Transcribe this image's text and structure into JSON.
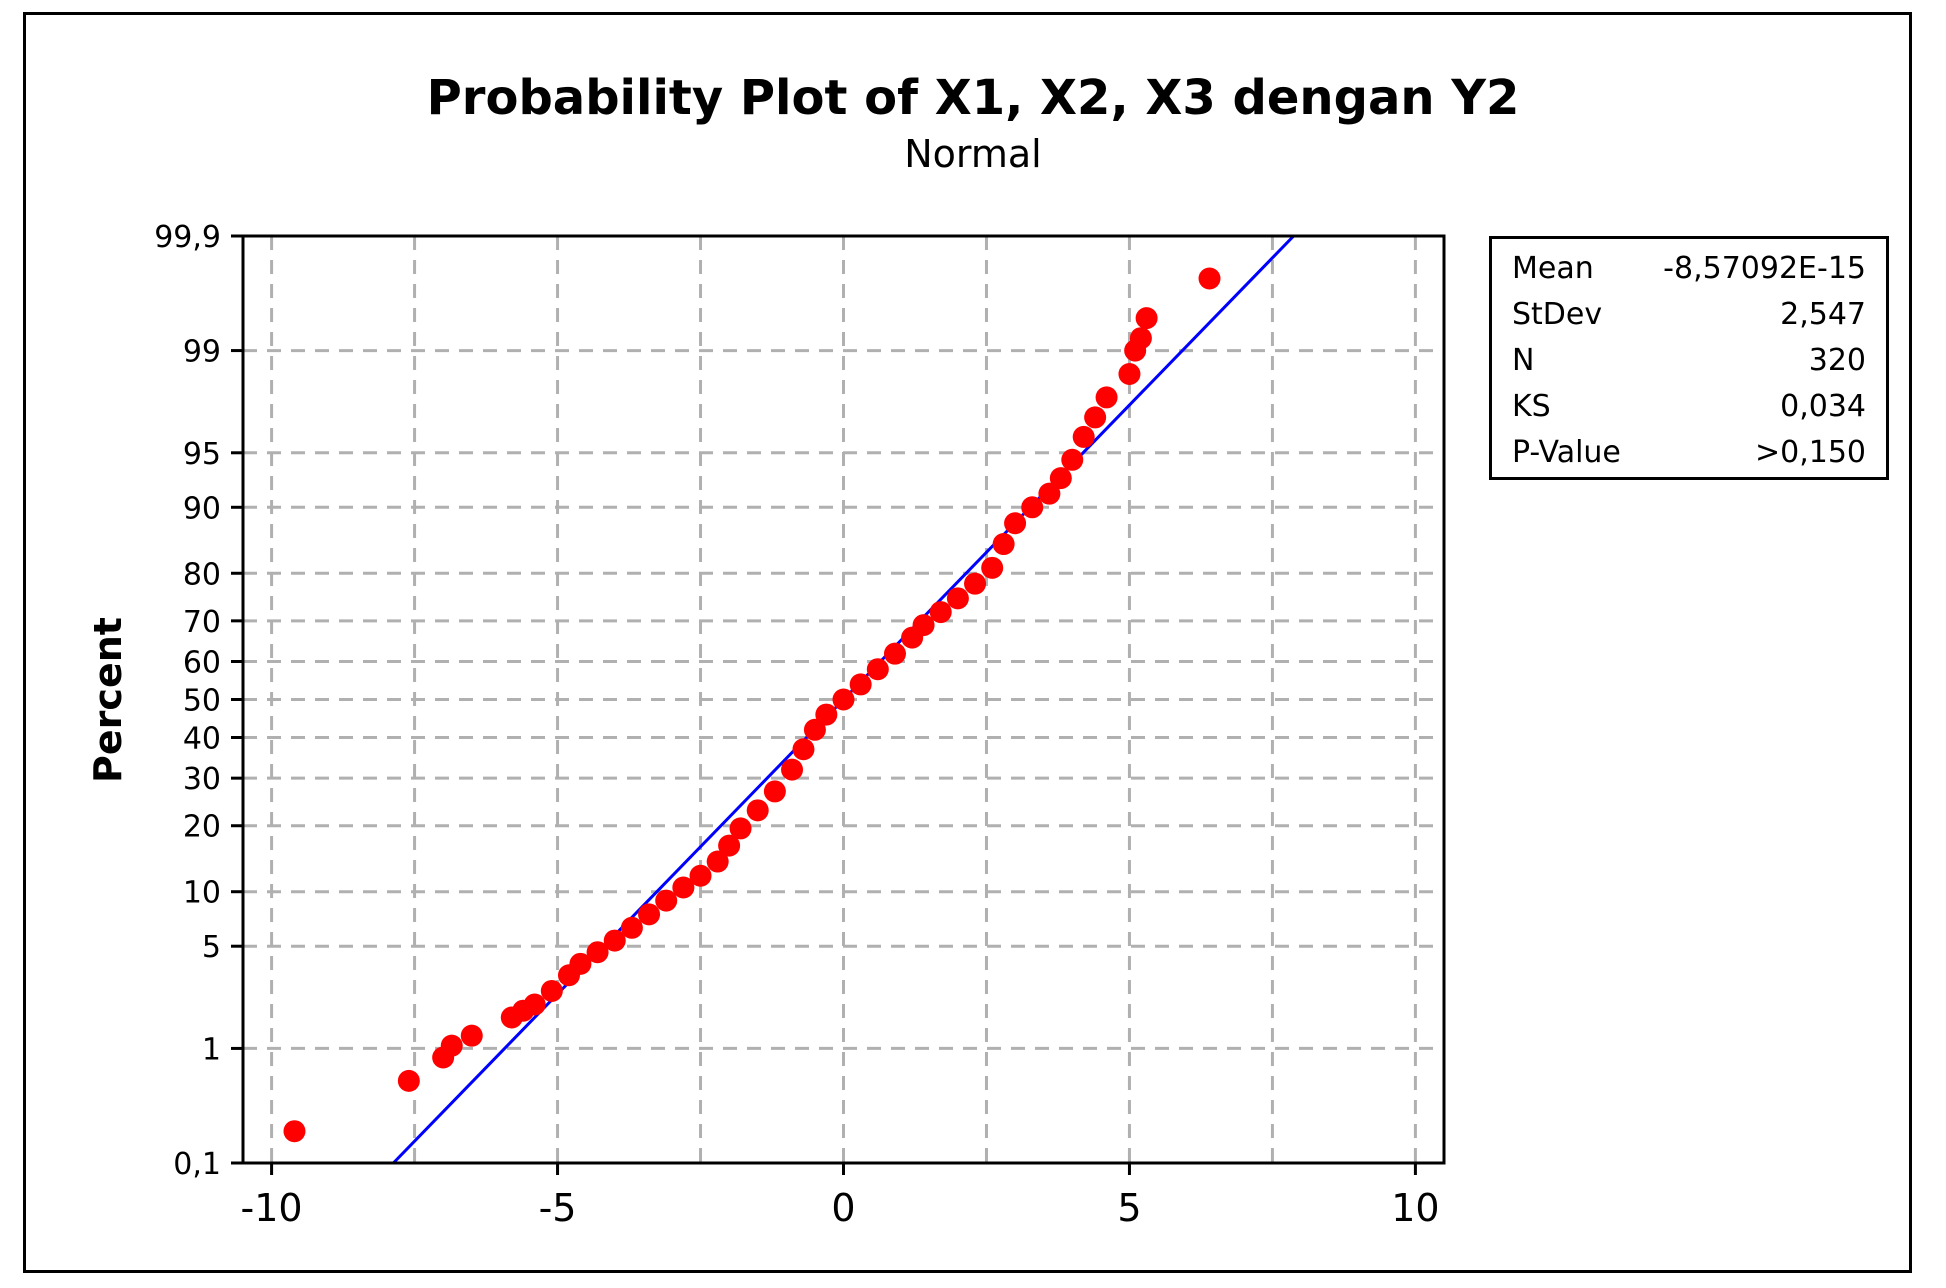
{
  "chart_data": {
    "type": "scatter",
    "title": "Probability Plot of X1, X2, X3 dengan Y2",
    "subtitle": "Normal",
    "xlabel": "",
    "ylabel": "Percent",
    "xlim": [
      -10.5,
      10.5
    ],
    "ylim_percent": [
      0.1,
      99.9
    ],
    "y_scale": "normal-probability",
    "grid": true,
    "x_ticks": [
      -10,
      -5,
      0,
      5,
      10
    ],
    "x_tick_labels": [
      "-10",
      "-5",
      "0",
      "5",
      "10"
    ],
    "y_ticks": [
      0.1,
      1,
      5,
      10,
      20,
      30,
      40,
      50,
      60,
      70,
      80,
      90,
      95,
      99,
      99.9
    ],
    "y_tick_labels": [
      "0,1",
      "1",
      "5",
      "10",
      "20",
      "30",
      "40",
      "50",
      "60",
      "70",
      "80",
      "90",
      "95",
      "99",
      "99,9"
    ],
    "fit_line": {
      "mean": 0,
      "stdev": 2.547,
      "color": "#0000ff"
    },
    "point_color": "#ff0000",
    "series": [
      {
        "points": [
          [
            -9.6,
            0.2
          ],
          [
            -7.6,
            0.55
          ],
          [
            -7.0,
            0.85
          ],
          [
            -6.85,
            1.05
          ],
          [
            -6.5,
            1.25
          ],
          [
            -5.8,
            1.7
          ],
          [
            -5.6,
            1.9
          ],
          [
            -5.4,
            2.1
          ],
          [
            -5.1,
            2.6
          ],
          [
            -4.8,
            3.3
          ],
          [
            -4.6,
            3.9
          ],
          [
            -4.3,
            4.6
          ],
          [
            -4.0,
            5.4
          ],
          [
            -3.7,
            6.4
          ],
          [
            -3.4,
            7.6
          ],
          [
            -3.1,
            9.0
          ],
          [
            -2.8,
            10.5
          ],
          [
            -2.5,
            12.0
          ],
          [
            -2.2,
            14.0
          ],
          [
            -2.0,
            16.5
          ],
          [
            -1.8,
            19.5
          ],
          [
            -1.5,
            23.0
          ],
          [
            -1.2,
            27.0
          ],
          [
            -0.9,
            32.0
          ],
          [
            -0.7,
            37.0
          ],
          [
            -0.5,
            42.0
          ],
          [
            -0.3,
            46.0
          ],
          [
            0.0,
            50.0
          ],
          [
            0.3,
            54.0
          ],
          [
            0.6,
            58.0
          ],
          [
            0.9,
            62.0
          ],
          [
            1.2,
            66.0
          ],
          [
            1.4,
            69.0
          ],
          [
            1.7,
            72.0
          ],
          [
            2.0,
            75.0
          ],
          [
            2.3,
            78.0
          ],
          [
            2.6,
            81.0
          ],
          [
            2.8,
            85.0
          ],
          [
            3.0,
            88.0
          ],
          [
            3.3,
            90.0
          ],
          [
            3.6,
            91.5
          ],
          [
            3.8,
            93.0
          ],
          [
            4.0,
            94.5
          ],
          [
            4.2,
            96.0
          ],
          [
            4.4,
            97.0
          ],
          [
            4.6,
            97.8
          ],
          [
            5.0,
            98.5
          ],
          [
            5.1,
            99.0
          ],
          [
            5.2,
            99.2
          ],
          [
            5.3,
            99.45
          ],
          [
            6.4,
            99.75
          ]
        ]
      }
    ]
  },
  "stats": [
    {
      "label": "Mean",
      "value": "-8,57092E-15"
    },
    {
      "label": "StDev",
      "value": "2,547"
    },
    {
      "label": "N",
      "value": "320"
    },
    {
      "label": "KS",
      "value": "0,034"
    },
    {
      "label": "P-Value",
      "value": ">0,150"
    }
  ]
}
